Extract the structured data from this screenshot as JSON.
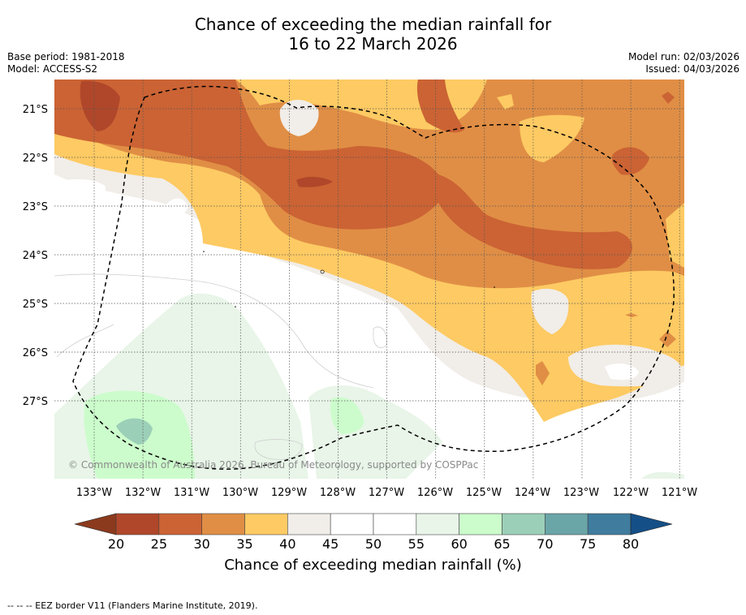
{
  "title_line1": "Chance of exceeding the median rainfall for",
  "title_line2": "16 to 22 March 2026",
  "meta_left": {
    "base_period": "Base period: 1981-2018",
    "model": "Model: ACCESS-S2"
  },
  "meta_right": {
    "model_run": "Model run: 02/03/2026",
    "issued": "Issued: 04/03/2026"
  },
  "map": {
    "lat_labels": [
      "21°S",
      "22°S",
      "23°S",
      "24°S",
      "25°S",
      "26°S",
      "27°S"
    ],
    "lon_labels": [
      "133°W",
      "132°W",
      "131°W",
      "130°W",
      "129°W",
      "128°W",
      "127°W",
      "126°W",
      "125°W",
      "124°W",
      "123°W",
      "122°W",
      "121°W"
    ],
    "copyright": "© Commonwealth of Australia 2026, Bureau of Meteorology, supported by COSPPac"
  },
  "colorbar": {
    "ticks": [
      "20",
      "25",
      "30",
      "35",
      "40",
      "45",
      "50",
      "55",
      "60",
      "65",
      "70",
      "75",
      "80"
    ],
    "colors": {
      "below20": "#8c3a1e",
      "20-25": "#b0472a",
      "25-30": "#cb6334",
      "30-35": "#e08e45",
      "35-40": "#fdca63",
      "40-45": "#f1ede8",
      "45-50": "#ffffff",
      "50-55": "#ffffff",
      "55-60": "#e8f5e8",
      "60-65": "#ccfccc",
      "65-70": "#9ccfb8",
      "70-75": "#6aa5a8",
      "75-80": "#3f7c9e",
      "above80": "#154f87"
    },
    "title": "Chance of exceeding median rainfall (%)"
  },
  "footer": "--  --  -- EEZ border V11 (Flanders Marine Institute, 2019)."
}
